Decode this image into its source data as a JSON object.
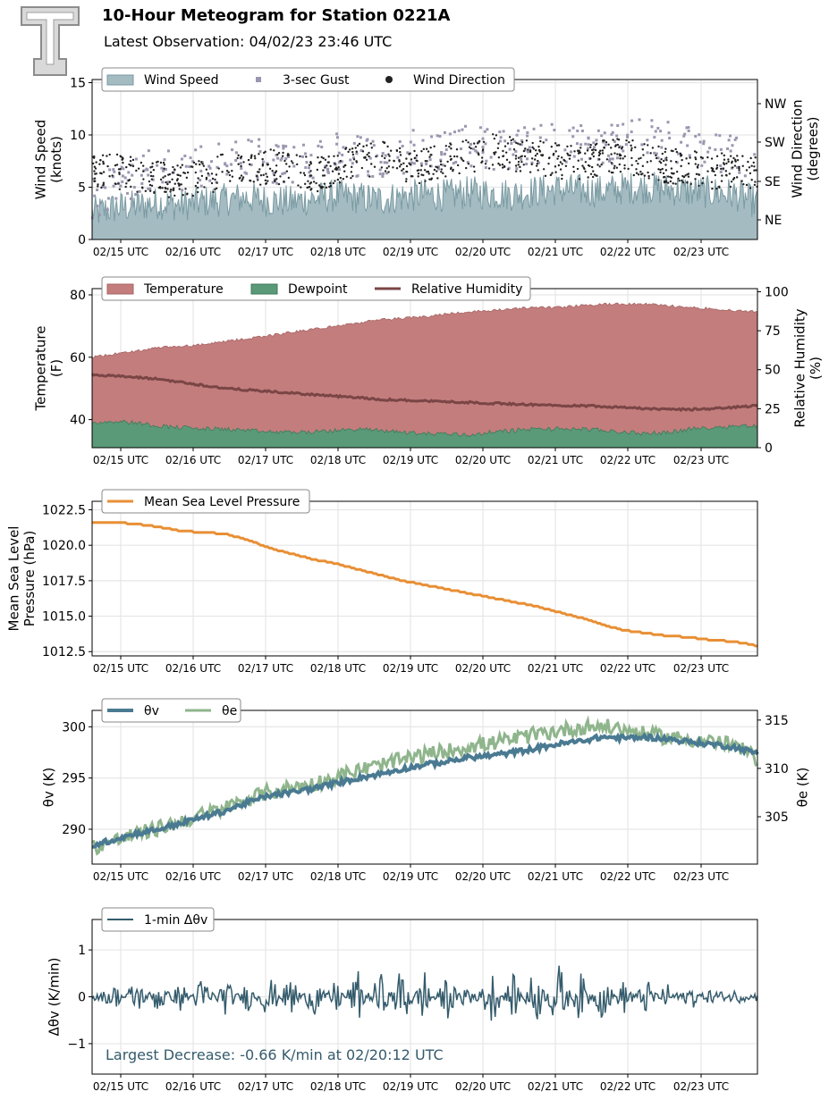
{
  "header": {
    "title": "10-Hour Meteogram for Station 0221A",
    "subtitle": "Latest Observation: 04/02/23 23:46 UTC",
    "logo_text": "TT"
  },
  "x_ticks": [
    "02/15 UTC",
    "02/16 UTC",
    "02/17 UTC",
    "02/18 UTC",
    "02/19 UTC",
    "02/20 UTC",
    "02/21 UTC",
    "02/22 UTC",
    "02/23 UTC"
  ],
  "colors": {
    "wind": "#a4bbc2",
    "wind_line": "#7a9aa2",
    "gust": "#9a97b0",
    "dir": "#222222",
    "temp": "#c37d7d",
    "dew": "#5a9a78",
    "rh": "#7a4545",
    "pressure": "#e88f35",
    "theta_v": "#4a7a92",
    "theta_e": "#8fb58c",
    "dtheta": "#345b6c"
  },
  "chart_data": [
    {
      "type": "area",
      "id": "wind",
      "ylabel": "Wind Speed\n(knots)",
      "y2label": "Wind Direction\n(degrees)",
      "ylim": [
        0,
        15.3
      ],
      "yticks": [
        0,
        5,
        10,
        15
      ],
      "y2ticks": [
        "NE",
        "SE",
        "SW",
        "NW"
      ],
      "legend": [
        "Wind Speed",
        "3-sec Gust",
        "Wind Direction"
      ],
      "legend_position": "top-left",
      "grid": true,
      "series": [
        {
          "name": "Wind Speed",
          "values": [
            2.5,
            3,
            3.2,
            3.5,
            3.3,
            3.6,
            3.8,
            4,
            3.7,
            3.6,
            3.9,
            4.2,
            4,
            3.8,
            4.1,
            4.3,
            4.2,
            4.5,
            4.4,
            4.3,
            4.6,
            4.8,
            4.7,
            4.6,
            4.9,
            5,
            4.8,
            4.6,
            4.5,
            4.3,
            3.5
          ]
        },
        {
          "name": "3-sec Gust",
          "values": [
            4,
            5,
            6,
            7,
            6.5,
            7,
            7.5,
            8,
            7.2,
            7,
            7.8,
            8.5,
            8,
            7.5,
            8.2,
            8.8,
            8.5,
            9,
            8.7,
            8.5,
            9.2,
            9.5,
            9,
            8.8,
            9.4,
            10,
            9.5,
            9,
            8.5,
            8,
            6
          ]
        },
        {
          "name": "Wind Direction",
          "values": [
            6.5,
            6.5,
            6.2,
            5.8,
            5.5,
            6,
            6.5,
            6.8,
            7,
            6.5,
            6.2,
            6.8,
            7.5,
            7.8,
            7.2,
            7,
            7.5,
            8,
            8.5,
            8.2,
            8,
            7.5,
            7.2,
            7.8,
            8,
            7.5,
            7,
            6.8,
            6.5,
            6.8,
            6.5
          ]
        }
      ]
    },
    {
      "type": "area",
      "id": "temperature",
      "ylabel": "Temperature\n(F)",
      "y2label": "Relative Humidity\n(%)",
      "ylim": [
        31,
        82
      ],
      "yticks": [
        40,
        60,
        80
      ],
      "y2lim": [
        0,
        102
      ],
      "y2ticks": [
        0,
        25,
        50,
        75,
        100
      ],
      "legend": [
        "Temperature",
        "Dewpoint",
        "Relative Humidity"
      ],
      "legend_position": "top-left",
      "grid": true,
      "series": [
        {
          "name": "Temperature",
          "values": [
            60,
            61,
            62,
            63,
            63.5,
            64,
            65,
            66,
            67,
            68,
            69,
            70,
            71,
            72,
            72.5,
            73,
            74,
            74.5,
            75,
            75.5,
            76,
            76,
            76.5,
            77,
            77,
            77,
            76.5,
            76,
            75.5,
            75,
            74.5
          ]
        },
        {
          "name": "Dewpoint",
          "values": [
            39,
            39.5,
            39,
            38,
            37.5,
            37,
            37,
            36.5,
            36,
            36,
            36,
            36.5,
            37,
            36.5,
            36,
            35.5,
            35.5,
            35,
            36,
            36.5,
            37,
            37,
            37,
            36.5,
            36,
            35.5,
            36,
            37,
            37.5,
            38,
            38
          ]
        },
        {
          "name": "Relative Humidity",
          "values": [
            47,
            46,
            45,
            44,
            42,
            40,
            38,
            37,
            36,
            35,
            34,
            33,
            32,
            31,
            30.5,
            30,
            29.5,
            29,
            28.5,
            28,
            27.5,
            27,
            27,
            26.5,
            26,
            25,
            24.5,
            24.5,
            25,
            26,
            27
          ]
        }
      ]
    },
    {
      "type": "line",
      "id": "pressure",
      "ylabel": "Mean Sea Level\nPressure (hPa)",
      "ylim": [
        1012.2,
        1023.1
      ],
      "yticks": [
        "1012.5",
        "1015.0",
        "1017.5",
        "1020.0",
        "1022.5"
      ],
      "legend": [
        "Mean Sea Level Pressure"
      ],
      "legend_position": "top-left",
      "grid": true,
      "series": [
        {
          "name": "Mean Sea Level Pressure",
          "values": [
            1021.6,
            1021.6,
            1021.5,
            1021.3,
            1021,
            1020.9,
            1020.8,
            1020.4,
            1019.8,
            1019.4,
            1019,
            1018.7,
            1018.3,
            1017.9,
            1017.5,
            1017.2,
            1016.9,
            1016.6,
            1016.3,
            1016,
            1015.7,
            1015.3,
            1014.9,
            1014.4,
            1014,
            1013.8,
            1013.6,
            1013.5,
            1013.3,
            1013.2,
            1012.9
          ]
        }
      ]
    },
    {
      "type": "line",
      "id": "theta",
      "ylabel": "θv (K)",
      "y2label": "θe (K)",
      "ylim": [
        286.6,
        301.6
      ],
      "yticks": [
        290,
        295,
        300
      ],
      "y2lim": [
        300.1,
        316
      ],
      "y2ticks": [
        305,
        310,
        315
      ],
      "legend": [
        "θv",
        "θe"
      ],
      "legend_position": "top-left",
      "grid": true,
      "series": [
        {
          "name": "θv",
          "values": [
            288.4,
            289,
            289.6,
            290,
            290.6,
            291.2,
            291.8,
            292.6,
            293.3,
            293.6,
            294,
            294.5,
            295,
            295.4,
            295.9,
            296.3,
            296.6,
            297,
            297.2,
            297.5,
            297.9,
            298.3,
            298.6,
            299,
            298.9,
            299,
            298.8,
            298.5,
            298.3,
            298,
            297.4
          ]
        },
        {
          "name": "θe",
          "values": [
            301.8,
            302.5,
            303.2,
            303.8,
            304.5,
            305.2,
            305.9,
            306.8,
            307.6,
            308,
            308.4,
            309.1,
            309.8,
            310.3,
            310.9,
            311.4,
            311.8,
            312.3,
            312.6,
            313,
            313.5,
            313.9,
            314.2,
            314.4,
            314,
            313.5,
            313.2,
            313,
            312.8,
            312.3,
            311
          ]
        }
      ]
    },
    {
      "type": "line",
      "id": "dtheta",
      "ylabel": "Δθv (K/min)",
      "ylim": [
        -1.65,
        1.65
      ],
      "yticks": [
        -1,
        0,
        1
      ],
      "legend": [
        "1-min Δθv"
      ],
      "legend_position": "top-left",
      "annotation": "Largest Decrease: -0.66 K/min at 02/20:12 UTC",
      "grid": true,
      "series": [
        {
          "name": "1-min Δθv",
          "values": [
            0.1,
            -0.2,
            0.3,
            -0.3,
            0.25,
            -0.35,
            0.3,
            -0.25,
            0.4,
            -0.4,
            0.35,
            -0.3,
            0.45,
            -0.45,
            0.6,
            -0.5,
            0.4,
            -0.35,
            0.5,
            -0.4,
            0.55,
            -0.66,
            0.45,
            -0.4,
            0.3,
            -0.3,
            0.25,
            -0.2,
            0.15,
            -0.1,
            0.05
          ]
        }
      ]
    }
  ]
}
